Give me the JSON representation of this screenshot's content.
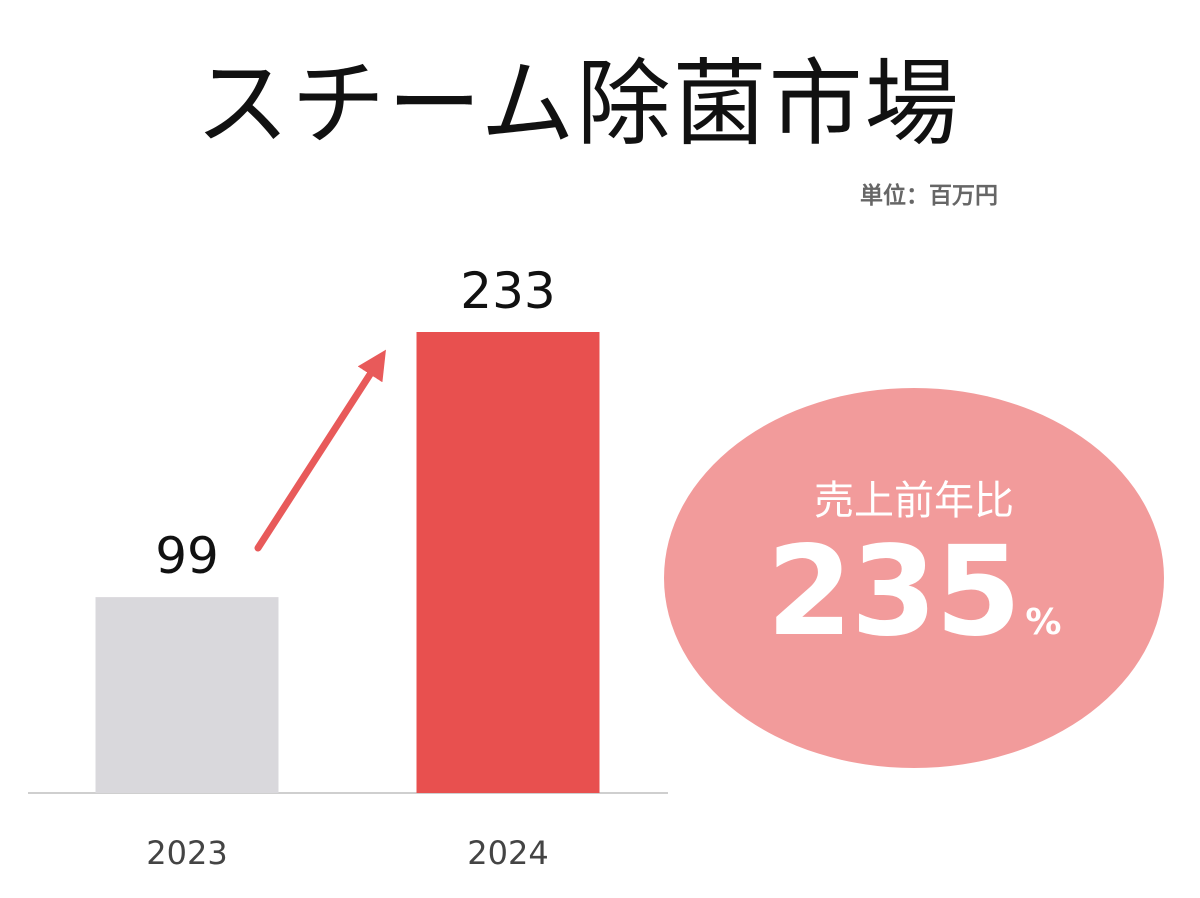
{
  "chart_data": {
    "type": "bar",
    "title": "スチーム除菌市場",
    "unit_note": "単位：百万円",
    "categories": [
      "2023",
      "2024"
    ],
    "values": [
      99,
      233
    ],
    "ylim": [
      0,
      233
    ],
    "grid": false,
    "legend": "none",
    "bar_colors": [
      "#d9d8dc",
      "#e8504f"
    ],
    "arrow_color": "#e85a5a",
    "annotation": {
      "label": "売上前年比",
      "value": "235",
      "unit": "%",
      "background": "#f29b9b"
    }
  }
}
